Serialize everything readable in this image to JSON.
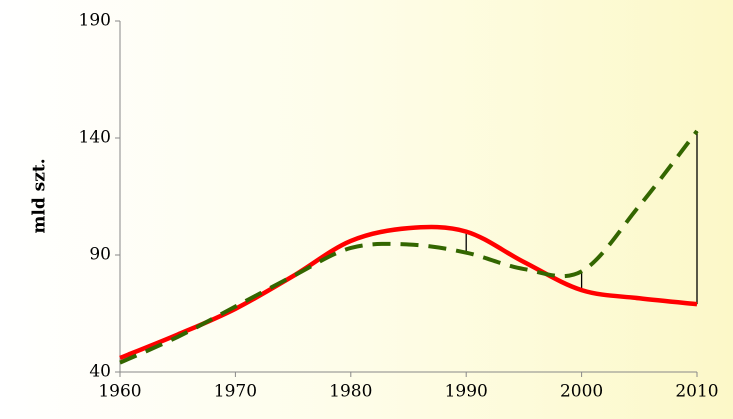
{
  "chart_data": {
    "type": "line",
    "ylabel": "mld szt.",
    "x": [
      1960,
      1965,
      1970,
      1975,
      1980,
      1985,
      1990,
      1995,
      2000,
      2005,
      2010
    ],
    "series": [
      {
        "color": "#ff0000",
        "style": "solid",
        "values": [
          46,
          56,
          67,
          81,
          96,
          101.5,
          100,
          87,
          75,
          71.5,
          69
        ]
      },
      {
        "color": "#336600",
        "style": "dashed",
        "values": [
          44,
          55,
          68,
          81,
          93,
          94.5,
          91,
          84,
          83,
          111,
          143
        ]
      }
    ],
    "difference_lines": [
      1990,
      2000,
      2010
    ],
    "xlim": [
      1960,
      2010
    ],
    "xticks": [
      1960,
      1970,
      1980,
      1990,
      2000,
      2010
    ],
    "ylim": [
      40,
      190
    ],
    "yticks": [
      40,
      90,
      140,
      190
    ],
    "grid": false
  }
}
